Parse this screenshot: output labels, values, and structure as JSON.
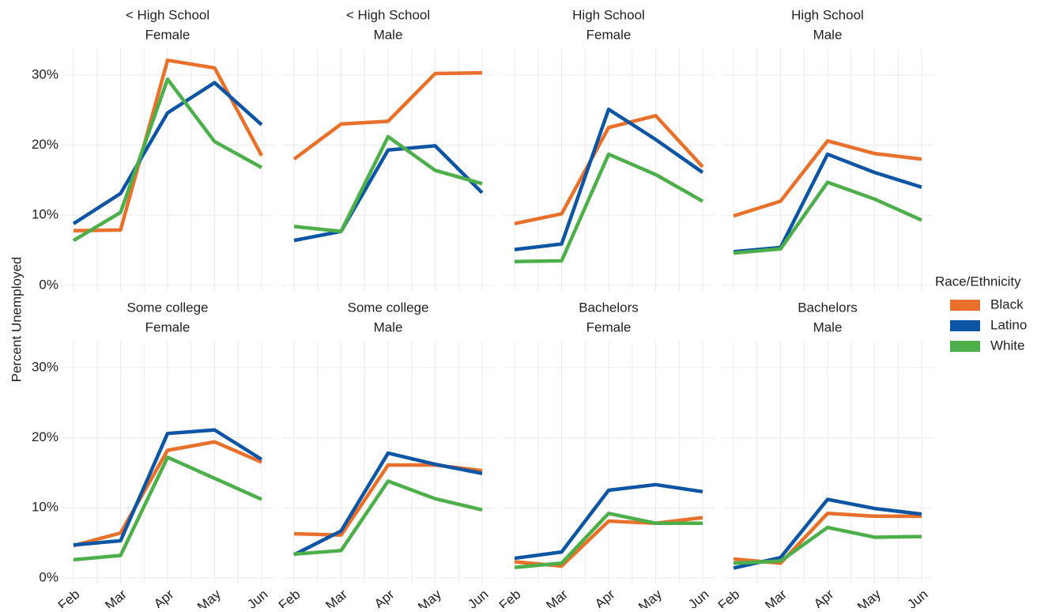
{
  "ylabel": "Percent Unemployed",
  "legend_title": "Race/Ethnicity",
  "legend": [
    {
      "name": "Black",
      "color": "#e8702a"
    },
    {
      "name": "Latino",
      "color": "#0c55a4"
    },
    {
      "name": "White",
      "color": "#4caf4a"
    }
  ],
  "categories": [
    "Feb",
    "Mar",
    "Apr",
    "May",
    "Jun"
  ],
  "ylim": [
    -0.8,
    33.7
  ],
  "yticks": [
    {
      "value": 0,
      "label": "0%"
    },
    {
      "value": 10,
      "label": "10%"
    },
    {
      "value": 20,
      "label": "20%"
    },
    {
      "value": 30,
      "label": "30%"
    }
  ],
  "grid": true,
  "chart_data": [
    {
      "type": "line",
      "title": "< High School",
      "subtitle": "Female",
      "series": [
        {
          "values": [
            7.8,
            7.9,
            32.1,
            31.0,
            18.5
          ]
        },
        {
          "values": [
            8.8,
            13.1,
            24.6,
            28.9,
            22.9
          ]
        },
        {
          "values": [
            6.4,
            10.4,
            29.4,
            20.5,
            16.8
          ]
        }
      ]
    },
    {
      "type": "line",
      "title": "< High School",
      "subtitle": "Male",
      "series": [
        {
          "values": [
            18.0,
            23.0,
            23.4,
            30.2,
            30.3
          ]
        },
        {
          "values": [
            6.4,
            7.7,
            19.3,
            19.9,
            13.2
          ]
        },
        {
          "values": [
            8.4,
            7.7,
            21.2,
            16.4,
            14.5
          ]
        }
      ]
    },
    {
      "type": "line",
      "title": "High School",
      "subtitle": "Female",
      "series": [
        {
          "values": [
            8.8,
            10.2,
            22.5,
            24.2,
            16.9
          ]
        },
        {
          "values": [
            5.1,
            5.9,
            25.1,
            20.8,
            16.1
          ]
        },
        {
          "values": [
            3.4,
            3.5,
            18.7,
            15.8,
            12.0
          ]
        }
      ]
    },
    {
      "type": "line",
      "title": "High School",
      "subtitle": "Male",
      "series": [
        {
          "values": [
            9.9,
            12.0,
            20.6,
            18.8,
            18.0
          ]
        },
        {
          "values": [
            4.8,
            5.4,
            18.7,
            16.1,
            14.0
          ]
        },
        {
          "values": [
            4.6,
            5.2,
            14.7,
            12.3,
            9.3
          ]
        }
      ]
    },
    {
      "type": "line",
      "title": "Some college",
      "subtitle": "Female",
      "series": [
        {
          "values": [
            4.6,
            6.4,
            18.2,
            19.4,
            16.5
          ]
        },
        {
          "values": [
            4.7,
            5.3,
            20.6,
            21.1,
            16.9
          ]
        },
        {
          "values": [
            2.6,
            3.2,
            17.2,
            14.2,
            11.2
          ]
        }
      ]
    },
    {
      "type": "line",
      "title": "Some college",
      "subtitle": "Male",
      "series": [
        {
          "values": [
            6.3,
            6.1,
            16.1,
            16.1,
            15.3
          ]
        },
        {
          "values": [
            3.3,
            6.7,
            17.8,
            16.2,
            14.9
          ]
        },
        {
          "values": [
            3.4,
            3.9,
            13.8,
            11.3,
            9.7
          ]
        }
      ]
    },
    {
      "type": "line",
      "title": "Bachelors",
      "subtitle": "Female",
      "series": [
        {
          "values": [
            2.3,
            1.7,
            8.1,
            7.8,
            8.6
          ]
        },
        {
          "values": [
            2.8,
            3.7,
            12.5,
            13.3,
            12.3
          ]
        },
        {
          "values": [
            1.5,
            2.1,
            9.2,
            7.8,
            7.8
          ]
        }
      ]
    },
    {
      "type": "line",
      "title": "Bachelors",
      "subtitle": "Male",
      "series": [
        {
          "values": [
            2.7,
            2.1,
            9.2,
            8.8,
            8.8
          ]
        },
        {
          "values": [
            1.4,
            2.9,
            11.2,
            9.9,
            9.1
          ]
        },
        {
          "values": [
            2.1,
            2.4,
            7.2,
            5.8,
            5.9
          ]
        }
      ]
    }
  ]
}
